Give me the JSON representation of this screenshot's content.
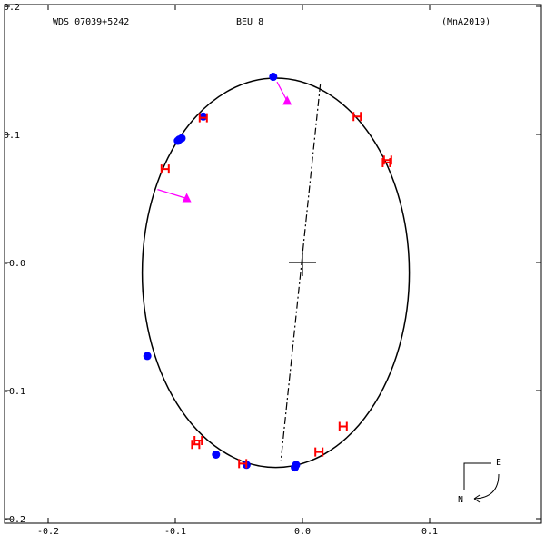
{
  "header": {
    "left": "WDS 07039+5242",
    "center": "BEU   8",
    "right": "(MnA2019)"
  },
  "chart_data": {
    "type": "scatter",
    "title": "",
    "xlabel": "",
    "ylabel": "",
    "xlim": [
      -0.2,
      0.19
    ],
    "ylim": [
      -0.2,
      0.2
    ],
    "x_ticks": [
      -0.2,
      -0.1,
      0.0,
      0.1
    ],
    "x_tick_labels": [
      "-0.2",
      "-0.1",
      "0.0",
      "0.1"
    ],
    "y_ticks": [
      0.2,
      0.1,
      0.0,
      -0.1,
      -0.2
    ],
    "y_tick_labels": [
      "0.2",
      "0.1",
      "-0.0",
      "-0.1",
      "-0.2"
    ],
    "grid": false,
    "orbit_ellipse": {
      "center": [
        -0.021,
        -0.008
      ],
      "semi_x": 0.105,
      "semi_y": 0.152
    },
    "primary_marker": [
      0.0,
      0.0
    ],
    "line_of_nodes": [
      [
        0.014,
        0.139
      ],
      [
        -0.017,
        -0.155
      ]
    ],
    "series": [
      {
        "kind": "circle",
        "color": "#0000ff",
        "points": [
          [
            -0.023,
            0.145
          ],
          [
            -0.078,
            0.114
          ],
          [
            -0.097,
            0.096
          ],
          [
            -0.098,
            0.095
          ],
          [
            -0.095,
            0.097
          ],
          [
            -0.122,
            -0.073
          ],
          [
            -0.068,
            -0.15
          ],
          [
            -0.044,
            -0.158
          ],
          [
            -0.006,
            -0.16
          ],
          [
            -0.005,
            -0.158
          ]
        ]
      },
      {
        "kind": "h-mark",
        "color": "#ff0000",
        "points": [
          [
            -0.078,
            0.113
          ],
          [
            -0.108,
            0.073
          ],
          [
            0.043,
            0.114
          ],
          [
            0.067,
            0.08
          ],
          [
            0.066,
            0.078
          ],
          [
            -0.082,
            -0.139
          ],
          [
            -0.084,
            -0.142
          ],
          [
            -0.047,
            -0.157
          ],
          [
            0.013,
            -0.148
          ],
          [
            0.032,
            -0.128
          ]
        ]
      },
      {
        "kind": "arrow",
        "color": "#ff00ff",
        "items": [
          {
            "from": [
              -0.02,
              0.141
            ],
            "to": [
              -0.012,
              0.126
            ]
          },
          {
            "from": [
              -0.114,
              0.057
            ],
            "to": [
              -0.091,
              0.05
            ]
          }
        ]
      }
    ],
    "compass": {
      "east": "E",
      "north": "N"
    }
  }
}
